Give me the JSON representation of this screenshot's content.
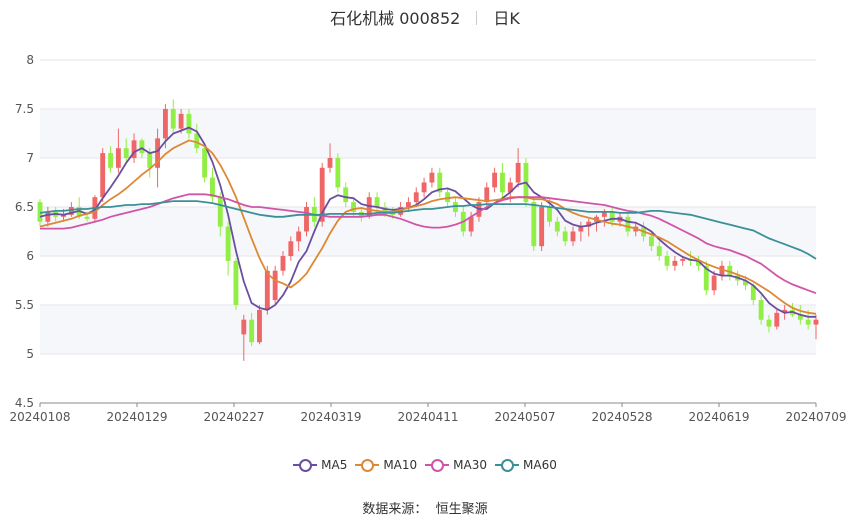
{
  "title": {
    "name": "石化机械 000852",
    "period": "日K"
  },
  "source": {
    "label": "数据来源：",
    "value": "恒生聚源"
  },
  "chart_data": {
    "type": "candlestick",
    "ylim": [
      4.5,
      8
    ],
    "yticks": [
      4.5,
      5,
      5.5,
      6,
      6.5,
      7,
      7.5,
      8
    ],
    "xtick_labels": [
      "20240108",
      "20240129",
      "20240227",
      "20240319",
      "20240411",
      "20240507",
      "20240528",
      "20240619",
      "20240709"
    ],
    "up_color": "#ee6666",
    "down_color": "#91ee44",
    "legend": [
      {
        "name": "MA5",
        "color": "#6a4fa0"
      },
      {
        "name": "MA10",
        "color": "#dd8833"
      },
      {
        "name": "MA30",
        "color": "#d055a8"
      },
      {
        "name": "MA60",
        "color": "#3a9096"
      }
    ],
    "ohlc": [
      [
        6.55,
        6.58,
        6.3,
        6.35
      ],
      [
        6.35,
        6.5,
        6.3,
        6.45
      ],
      [
        6.45,
        6.5,
        6.35,
        6.4
      ],
      [
        6.4,
        6.48,
        6.35,
        6.42
      ],
      [
        6.42,
        6.55,
        6.4,
        6.5
      ],
      [
        6.5,
        6.6,
        6.38,
        6.4
      ],
      [
        6.4,
        6.45,
        6.35,
        6.38
      ],
      [
        6.38,
        6.62,
        6.35,
        6.6
      ],
      [
        6.6,
        7.1,
        6.55,
        7.05
      ],
      [
        7.05,
        7.12,
        6.85,
        6.9
      ],
      [
        6.9,
        7.3,
        6.85,
        7.1
      ],
      [
        7.1,
        7.2,
        6.95,
        7.0
      ],
      [
        7.0,
        7.25,
        6.95,
        7.18
      ],
      [
        7.18,
        7.2,
        7.0,
        7.05
      ],
      [
        7.05,
        7.1,
        6.8,
        6.9
      ],
      [
        6.9,
        7.3,
        6.7,
        7.2
      ],
      [
        7.2,
        7.55,
        7.1,
        7.5
      ],
      [
        7.5,
        7.6,
        7.25,
        7.3
      ],
      [
        7.3,
        7.5,
        7.25,
        7.45
      ],
      [
        7.45,
        7.5,
        7.2,
        7.25
      ],
      [
        7.25,
        7.35,
        7.05,
        7.1
      ],
      [
        7.1,
        7.15,
        6.75,
        6.8
      ],
      [
        6.8,
        6.9,
        6.55,
        6.6
      ],
      [
        6.6,
        6.65,
        6.2,
        6.3
      ],
      [
        6.3,
        6.35,
        5.8,
        5.95
      ],
      [
        5.95,
        5.98,
        5.45,
        5.5
      ],
      [
        5.2,
        5.4,
        4.93,
        5.35
      ],
      [
        5.35,
        5.42,
        5.08,
        5.12
      ],
      [
        5.12,
        5.5,
        5.1,
        5.45
      ],
      [
        5.45,
        5.9,
        5.4,
        5.85
      ],
      [
        5.55,
        5.9,
        5.5,
        5.85
      ],
      [
        5.85,
        6.05,
        5.8,
        6.0
      ],
      [
        6.0,
        6.2,
        5.95,
        6.15
      ],
      [
        6.15,
        6.3,
        6.05,
        6.25
      ],
      [
        6.25,
        6.55,
        6.2,
        6.5
      ],
      [
        6.5,
        6.6,
        6.3,
        6.35
      ],
      [
        6.35,
        6.95,
        6.3,
        6.9
      ],
      [
        6.9,
        7.15,
        6.85,
        7.0
      ],
      [
        7.0,
        7.05,
        6.65,
        6.7
      ],
      [
        6.7,
        6.75,
        6.5,
        6.55
      ],
      [
        6.55,
        6.6,
        6.4,
        6.45
      ],
      [
        6.45,
        6.5,
        6.35,
        6.4
      ],
      [
        6.4,
        6.65,
        6.38,
        6.6
      ],
      [
        6.6,
        6.65,
        6.45,
        6.5
      ],
      [
        6.5,
        6.55,
        6.4,
        6.45
      ],
      [
        6.45,
        6.5,
        6.38,
        6.42
      ],
      [
        6.42,
        6.55,
        6.4,
        6.5
      ],
      [
        6.5,
        6.6,
        6.45,
        6.55
      ],
      [
        6.55,
        6.7,
        6.5,
        6.65
      ],
      [
        6.65,
        6.8,
        6.6,
        6.75
      ],
      [
        6.75,
        6.9,
        6.7,
        6.85
      ],
      [
        6.85,
        6.9,
        6.6,
        6.65
      ],
      [
        6.65,
        6.7,
        6.5,
        6.55
      ],
      [
        6.55,
        6.6,
        6.4,
        6.45
      ],
      [
        6.45,
        6.5,
        6.2,
        6.25
      ],
      [
        6.25,
        6.45,
        6.2,
        6.4
      ],
      [
        6.4,
        6.6,
        6.35,
        6.55
      ],
      [
        6.55,
        6.75,
        6.5,
        6.7
      ],
      [
        6.7,
        6.9,
        6.65,
        6.85
      ],
      [
        6.85,
        6.95,
        6.6,
        6.65
      ],
      [
        6.65,
        6.8,
        6.55,
        6.75
      ],
      [
        6.75,
        7.1,
        6.7,
        6.95
      ],
      [
        6.95,
        7.0,
        6.5,
        6.55
      ],
      [
        6.55,
        6.6,
        6.05,
        6.1
      ],
      [
        6.1,
        6.55,
        6.05,
        6.5
      ],
      [
        6.5,
        6.6,
        6.3,
        6.35
      ],
      [
        6.35,
        6.4,
        6.2,
        6.25
      ],
      [
        6.25,
        6.3,
        6.1,
        6.15
      ],
      [
        6.15,
        6.3,
        6.1,
        6.25
      ],
      [
        6.25,
        6.35,
        6.15,
        6.3
      ],
      [
        6.3,
        6.38,
        6.2,
        6.35
      ],
      [
        6.35,
        6.42,
        6.25,
        6.4
      ],
      [
        6.4,
        6.48,
        6.3,
        6.45
      ],
      [
        6.45,
        6.5,
        6.3,
        6.35
      ],
      [
        6.35,
        6.45,
        6.3,
        6.4
      ],
      [
        6.4,
        6.45,
        6.2,
        6.25
      ],
      [
        6.25,
        6.35,
        6.2,
        6.3
      ],
      [
        6.3,
        6.35,
        6.15,
        6.2
      ],
      [
        6.2,
        6.25,
        6.05,
        6.1
      ],
      [
        6.1,
        6.15,
        5.95,
        6.0
      ],
      [
        6.0,
        6.05,
        5.85,
        5.9
      ],
      [
        5.9,
        6.0,
        5.85,
        5.95
      ],
      [
        5.95,
        6.0,
        5.9,
        5.97
      ],
      [
        5.97,
        6.05,
        5.9,
        5.95
      ],
      [
        5.95,
        6.0,
        5.85,
        5.9
      ],
      [
        5.9,
        5.95,
        5.6,
        5.65
      ],
      [
        5.65,
        5.85,
        5.6,
        5.8
      ],
      [
        5.8,
        5.95,
        5.75,
        5.9
      ],
      [
        5.9,
        5.95,
        5.75,
        5.8
      ],
      [
        5.8,
        5.85,
        5.7,
        5.75
      ],
      [
        5.75,
        5.8,
        5.65,
        5.7
      ],
      [
        5.7,
        5.72,
        5.5,
        5.55
      ],
      [
        5.55,
        5.6,
        5.3,
        5.35
      ],
      [
        5.35,
        5.4,
        5.22,
        5.28
      ],
      [
        5.28,
        5.45,
        5.25,
        5.42
      ],
      [
        5.42,
        5.5,
        5.35,
        5.45
      ],
      [
        5.45,
        5.52,
        5.38,
        5.4
      ],
      [
        5.4,
        5.5,
        5.3,
        5.35
      ],
      [
        5.35,
        5.45,
        5.25,
        5.3
      ],
      [
        5.3,
        5.4,
        5.15,
        5.35
      ]
    ],
    "ma": {
      "MA5": [
        6.4,
        6.42,
        6.43,
        6.42,
        6.44,
        6.46,
        6.43,
        6.47,
        6.59,
        6.7,
        6.82,
        6.95,
        7.06,
        7.1,
        7.05,
        7.07,
        7.17,
        7.25,
        7.28,
        7.31,
        7.27,
        7.14,
        6.96,
        6.72,
        6.42,
        6.05,
        5.74,
        5.52,
        5.47,
        5.45,
        5.5,
        5.6,
        5.74,
        5.94,
        6.05,
        6.25,
        6.44,
        6.58,
        6.62,
        6.6,
        6.59,
        6.53,
        6.51,
        6.5,
        6.48,
        6.47,
        6.48,
        6.49,
        6.52,
        6.58,
        6.65,
        6.68,
        6.69,
        6.66,
        6.59,
        6.52,
        6.48,
        6.48,
        6.54,
        6.59,
        6.65,
        6.73,
        6.75,
        6.65,
        6.6,
        6.54,
        6.47,
        6.36,
        6.32,
        6.3,
        6.31,
        6.34,
        6.36,
        6.38,
        6.38,
        6.35,
        6.34,
        6.3,
        6.25,
        6.17,
        6.1,
        6.04,
        5.99,
        5.96,
        5.95,
        5.87,
        5.82,
        5.8,
        5.8,
        5.78,
        5.75,
        5.7,
        5.62,
        5.52,
        5.46,
        5.42,
        5.43,
        5.4,
        5.38,
        5.38
      ],
      "MA10": [
        6.3,
        6.32,
        6.34,
        6.36,
        6.38,
        6.41,
        6.43,
        6.45,
        6.52,
        6.58,
        6.63,
        6.69,
        6.76,
        6.83,
        6.89,
        6.96,
        7.04,
        7.1,
        7.14,
        7.18,
        7.16,
        7.12,
        7.05,
        6.93,
        6.78,
        6.6,
        6.39,
        6.18,
        5.98,
        5.82,
        5.75,
        5.72,
        5.68,
        5.74,
        5.82,
        5.95,
        6.08,
        6.23,
        6.36,
        6.45,
        6.48,
        6.49,
        6.47,
        6.46,
        6.45,
        6.45,
        6.47,
        6.49,
        6.51,
        6.53,
        6.56,
        6.58,
        6.59,
        6.6,
        6.59,
        6.58,
        6.57,
        6.56,
        6.57,
        6.58,
        6.6,
        6.6,
        6.6,
        6.58,
        6.58,
        6.56,
        6.53,
        6.48,
        6.44,
        6.41,
        6.39,
        6.37,
        6.35,
        6.33,
        6.32,
        6.3,
        6.28,
        6.25,
        6.22,
        6.19,
        6.15,
        6.1,
        6.05,
        6.0,
        5.96,
        5.92,
        5.89,
        5.86,
        5.84,
        5.81,
        5.78,
        5.74,
        5.69,
        5.64,
        5.58,
        5.52,
        5.47,
        5.44,
        5.42,
        5.41
      ],
      "MA30": [
        6.28,
        6.28,
        6.28,
        6.28,
        6.29,
        6.31,
        6.33,
        6.35,
        6.37,
        6.4,
        6.42,
        6.44,
        6.46,
        6.48,
        6.5,
        6.53,
        6.56,
        6.59,
        6.61,
        6.63,
        6.63,
        6.63,
        6.62,
        6.6,
        6.58,
        6.55,
        6.52,
        6.5,
        6.5,
        6.49,
        6.48,
        6.47,
        6.46,
        6.45,
        6.44,
        6.42,
        6.41,
        6.4,
        6.4,
        6.4,
        6.4,
        6.4,
        6.41,
        6.42,
        6.42,
        6.4,
        6.38,
        6.35,
        6.32,
        6.3,
        6.29,
        6.29,
        6.3,
        6.32,
        6.35,
        6.4,
        6.45,
        6.5,
        6.54,
        6.57,
        6.59,
        6.6,
        6.6,
        6.6,
        6.6,
        6.59,
        6.58,
        6.57,
        6.56,
        6.55,
        6.54,
        6.53,
        6.52,
        6.5,
        6.48,
        6.46,
        6.45,
        6.43,
        6.41,
        6.38,
        6.34,
        6.3,
        6.26,
        6.22,
        6.18,
        6.13,
        6.1,
        6.08,
        6.06,
        6.03,
        6.0,
        5.96,
        5.92,
        5.86,
        5.8,
        5.75,
        5.71,
        5.68,
        5.65,
        5.62
      ],
      "MA60": [
        6.44,
        6.45,
        6.46,
        6.46,
        6.47,
        6.48,
        6.48,
        6.49,
        6.5,
        6.5,
        6.51,
        6.52,
        6.52,
        6.53,
        6.53,
        6.54,
        6.55,
        6.56,
        6.56,
        6.56,
        6.56,
        6.55,
        6.54,
        6.52,
        6.5,
        6.48,
        6.46,
        6.44,
        6.42,
        6.41,
        6.4,
        6.4,
        6.41,
        6.42,
        6.42,
        6.42,
        6.42,
        6.43,
        6.43,
        6.43,
        6.43,
        6.43,
        6.43,
        6.44,
        6.44,
        6.44,
        6.45,
        6.46,
        6.47,
        6.48,
        6.48,
        6.49,
        6.5,
        6.51,
        6.51,
        6.52,
        6.52,
        6.53,
        6.53,
        6.53,
        6.53,
        6.53,
        6.53,
        6.52,
        6.51,
        6.5,
        6.49,
        6.48,
        6.47,
        6.46,
        6.45,
        6.45,
        6.45,
        6.45,
        6.44,
        6.44,
        6.44,
        6.45,
        6.46,
        6.46,
        6.45,
        6.44,
        6.43,
        6.42,
        6.4,
        6.38,
        6.36,
        6.34,
        6.32,
        6.3,
        6.28,
        6.26,
        6.22,
        6.18,
        6.15,
        6.12,
        6.09,
        6.06,
        6.02,
        5.97
      ]
    }
  }
}
